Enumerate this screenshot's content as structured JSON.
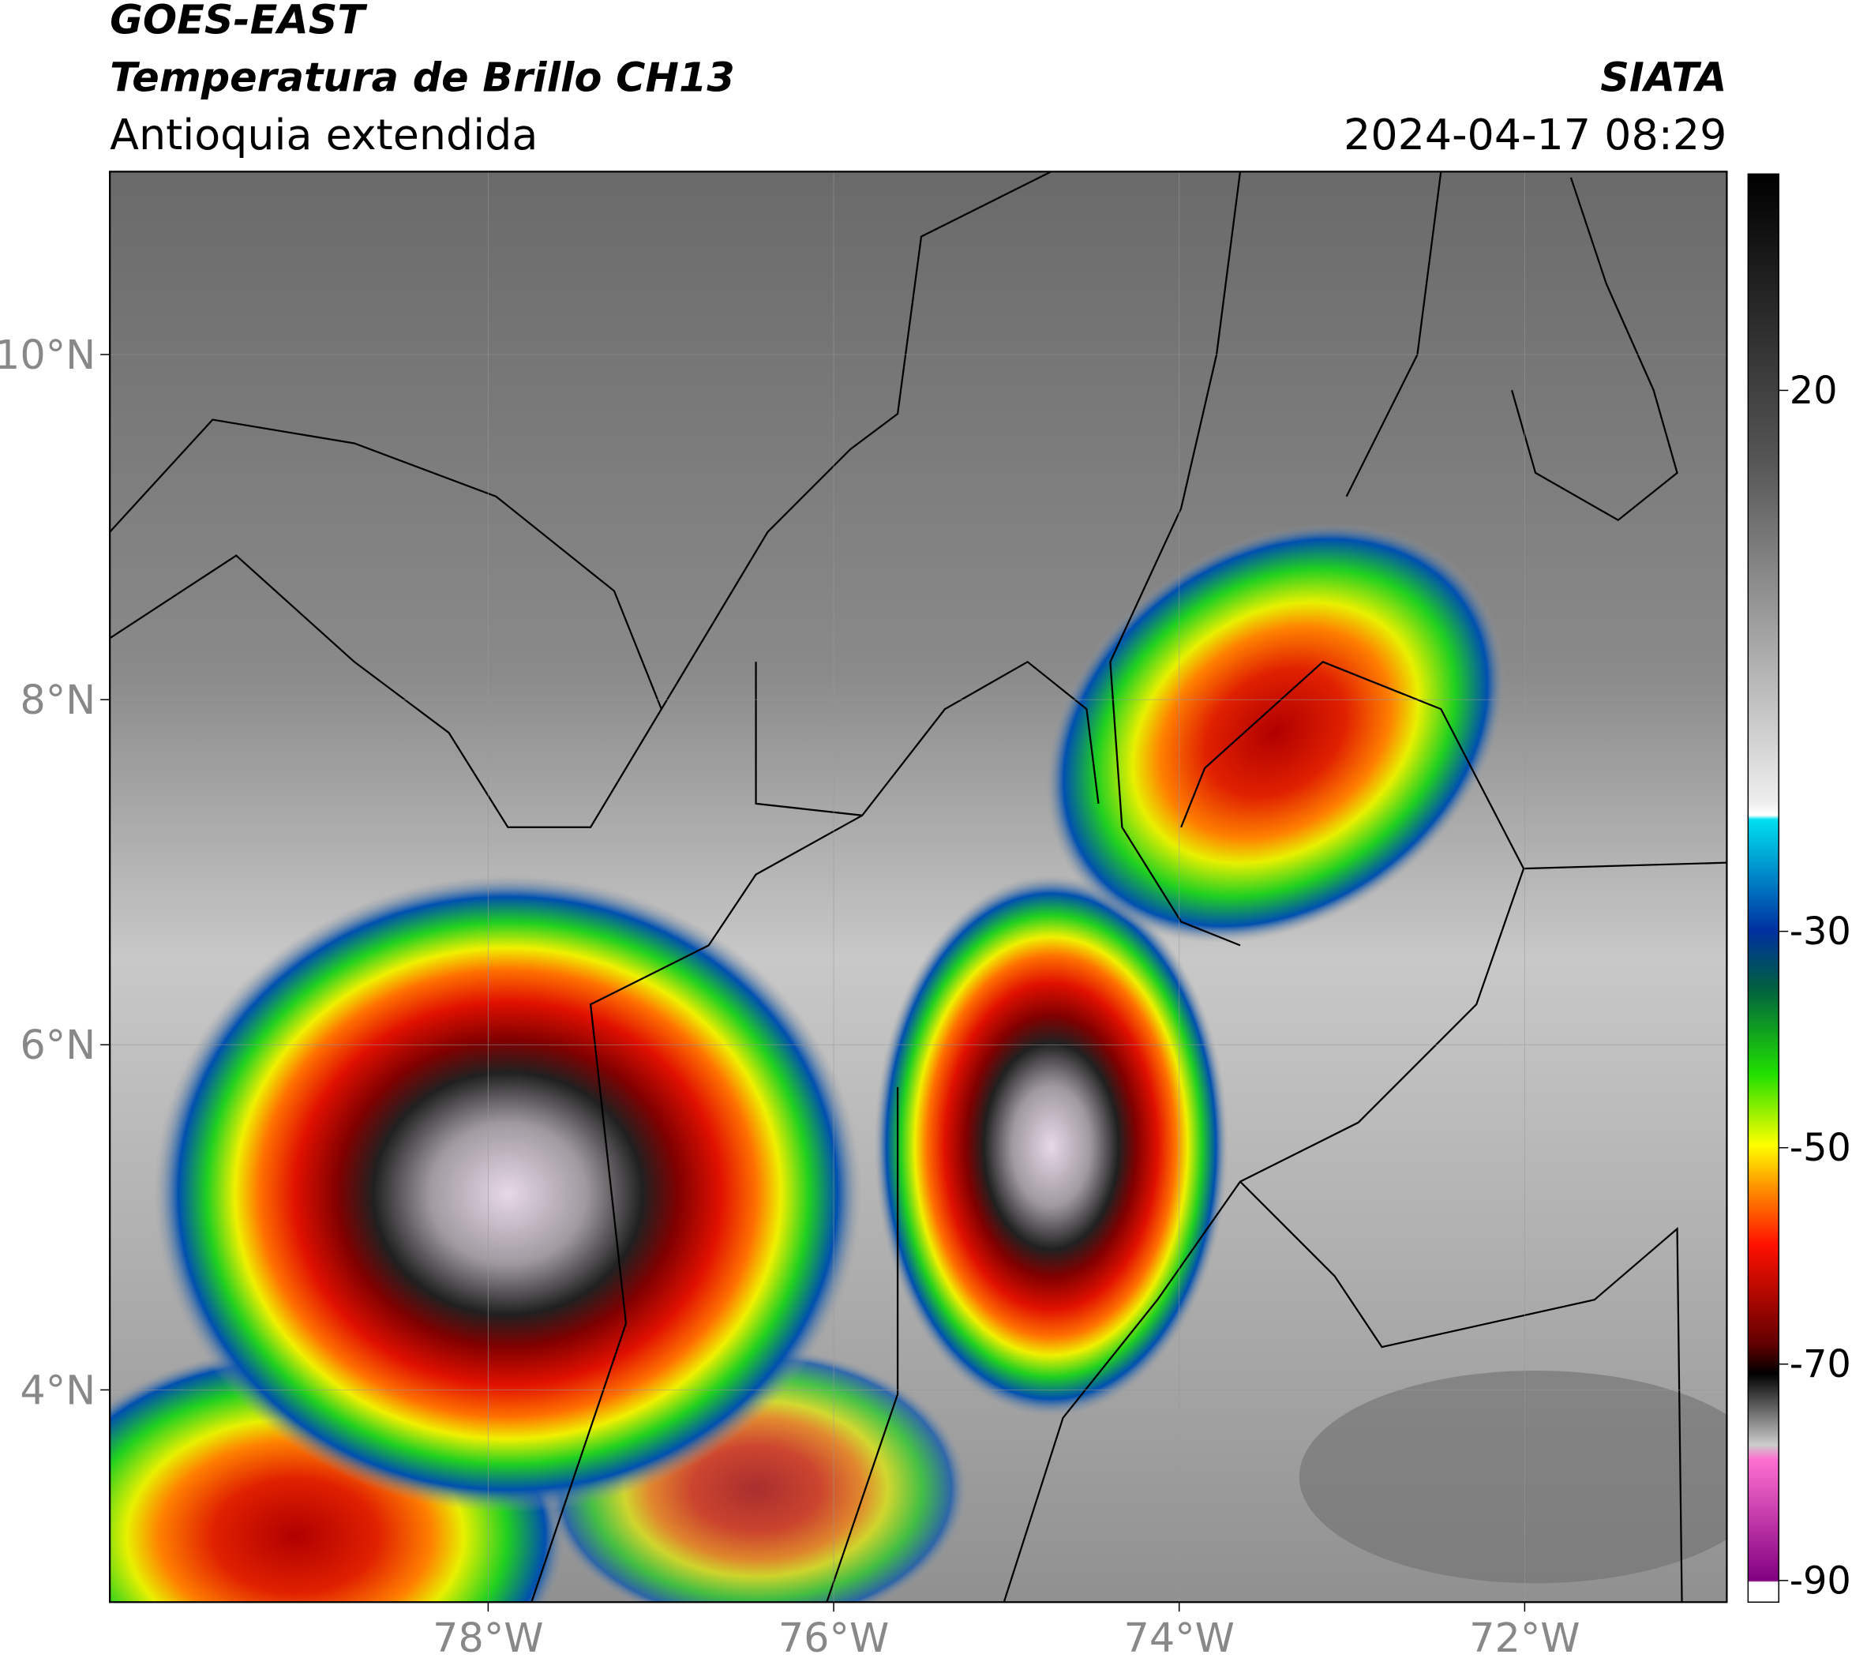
{
  "header": {
    "satellite": "GOES-EAST",
    "product": "Temperatura de Brillo CH13",
    "region": "Antioquia extendida",
    "agency": "SIATA",
    "datetime": "2024-04-17 08:29"
  },
  "map": {
    "lonlim": [
      -80.19,
      -70.83
    ],
    "latlim": [
      2.77,
      11.06
    ],
    "lon_ticks": [
      {
        "value": -78,
        "label": "78°W"
      },
      {
        "value": -76,
        "label": "76°W"
      },
      {
        "value": -74,
        "label": "74°W"
      },
      {
        "value": -72,
        "label": "72°W"
      }
    ],
    "lat_ticks": [
      {
        "value": 10,
        "label": "10°N"
      },
      {
        "value": 8,
        "label": "8°N"
      },
      {
        "value": 6,
        "label": "6°N"
      },
      {
        "value": 4,
        "label": "4°N"
      }
    ]
  },
  "colorbar": {
    "lim": [
      -92,
      40
    ],
    "ticks": [
      20,
      -30,
      -50,
      -70,
      -90
    ]
  }
}
